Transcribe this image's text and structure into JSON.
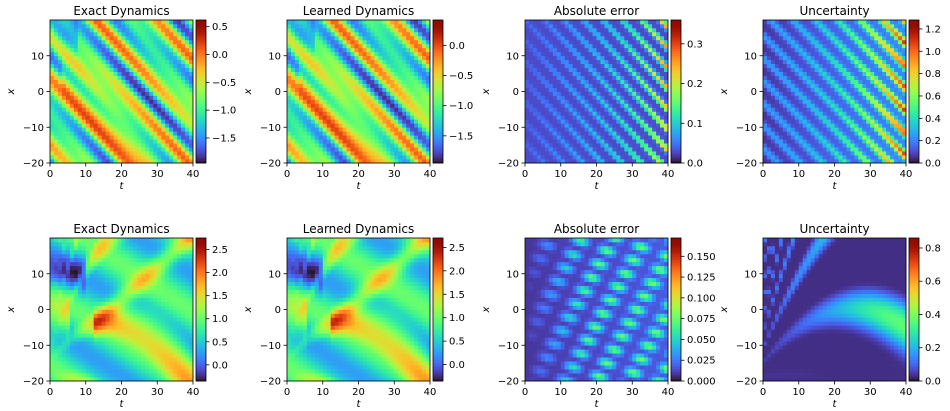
{
  "chart_data": [
    {
      "type": "heatmap",
      "title": "Exact Dynamics",
      "xlabel": "t",
      "ylabel": "x",
      "xlim": [
        0,
        40
      ],
      "ylim": [
        -20,
        20
      ],
      "xticks": [
        0,
        10,
        20,
        30,
        40
      ],
      "yticks": [
        -20,
        -10,
        0,
        10
      ],
      "colormap": "turbo",
      "pattern": "diag",
      "seed": 1,
      "colorbar": {
        "vmin": -1.95,
        "vmax": 0.62,
        "ticks": [
          "0.5",
          "0.0",
          "−0.5",
          "−1.0",
          "−1.5"
        ],
        "values": [
          0.5,
          0.0,
          -0.5,
          -1.0,
          -1.5
        ]
      }
    },
    {
      "type": "heatmap",
      "title": "Learned Dynamics",
      "xlabel": "t",
      "ylabel": "x",
      "xlim": [
        0,
        40
      ],
      "ylim": [
        -20,
        20
      ],
      "xticks": [
        0,
        10,
        20,
        30,
        40
      ],
      "yticks": [
        -20,
        -10,
        0,
        10
      ],
      "colormap": "turbo",
      "pattern": "diag",
      "seed": 1,
      "colorbar": {
        "vmin": -1.95,
        "vmax": 0.42,
        "ticks": [
          "0.0",
          "−0.5",
          "−1.0",
          "−1.5"
        ],
        "values": [
          0.0,
          -0.5,
          -1.0,
          -1.5
        ]
      }
    },
    {
      "type": "heatmap",
      "title": "Absolute error",
      "xlabel": "t",
      "ylabel": "x",
      "xlim": [
        0,
        40
      ],
      "ylim": [
        -20,
        20
      ],
      "xticks": [
        0,
        10,
        20,
        30,
        40
      ],
      "yticks": [
        -20,
        -10,
        0,
        10
      ],
      "colormap": "turbo",
      "pattern": "err1",
      "seed": 2,
      "colorbar": {
        "vmin": 0.0,
        "vmax": 0.36,
        "ticks": [
          "0.3",
          "0.2",
          "0.1",
          "0.0"
        ],
        "values": [
          0.3,
          0.2,
          0.1,
          0.0
        ]
      }
    },
    {
      "type": "heatmap",
      "title": "Uncertainty",
      "xlabel": "t",
      "ylabel": "x",
      "xlim": [
        0,
        40
      ],
      "ylim": [
        -20,
        20
      ],
      "xticks": [
        0,
        10,
        20,
        30,
        40
      ],
      "yticks": [
        -20,
        -10,
        0,
        10
      ],
      "colormap": "turbo",
      "pattern": "unc1",
      "seed": 3,
      "colorbar": {
        "vmin": 0.0,
        "vmax": 1.28,
        "ticks": [
          "1.2",
          "1.0",
          "0.8",
          "0.6",
          "0.4",
          "0.2",
          "0.0"
        ],
        "values": [
          1.2,
          1.0,
          0.8,
          0.6,
          0.4,
          0.2,
          0.0
        ]
      }
    },
    {
      "type": "heatmap",
      "title": "Exact Dynamics",
      "xlabel": "t",
      "ylabel": "x",
      "xlim": [
        0,
        40
      ],
      "ylim": [
        -20,
        20
      ],
      "xticks": [
        0,
        10,
        20,
        30,
        40
      ],
      "yticks": [
        -20,
        -10,
        0,
        10
      ],
      "colormap": "turbo",
      "pattern": "fan",
      "seed": 4,
      "colorbar": {
        "vmin": -0.35,
        "vmax": 2.75,
        "ticks": [
          "2.5",
          "2.0",
          "1.5",
          "1.0",
          "0.5",
          "0.0"
        ],
        "values": [
          2.5,
          2.0,
          1.5,
          1.0,
          0.5,
          0.0
        ]
      }
    },
    {
      "type": "heatmap",
      "title": "Learned Dynamics",
      "xlabel": "t",
      "ylabel": "x",
      "xlim": [
        0,
        40
      ],
      "ylim": [
        -20,
        20
      ],
      "xticks": [
        0,
        10,
        20,
        30,
        40
      ],
      "yticks": [
        -20,
        -10,
        0,
        10
      ],
      "colormap": "turbo",
      "pattern": "fan",
      "seed": 4,
      "colorbar": {
        "vmin": -0.35,
        "vmax": 2.7,
        "ticks": [
          "2.5",
          "2.0",
          "1.5",
          "1.0",
          "0.5",
          "0.0"
        ],
        "values": [
          2.5,
          2.0,
          1.5,
          1.0,
          0.5,
          0.0
        ]
      }
    },
    {
      "type": "heatmap",
      "title": "Absolute error",
      "xlabel": "t",
      "ylabel": "x",
      "xlim": [
        0,
        40
      ],
      "ylim": [
        -20,
        20
      ],
      "xticks": [
        0,
        10,
        20,
        30,
        40
      ],
      "yticks": [
        -20,
        -10,
        0,
        10
      ],
      "colormap": "turbo",
      "pattern": "err2",
      "seed": 5,
      "colorbar": {
        "vmin": 0.0,
        "vmax": 0.172,
        "ticks": [
          "0.150",
          "0.125",
          "0.100",
          "0.075",
          "0.050",
          "0.025",
          "0.000"
        ],
        "values": [
          0.15,
          0.125,
          0.1,
          0.075,
          0.05,
          0.025,
          0.0
        ]
      }
    },
    {
      "type": "heatmap",
      "title": "Uncertainty",
      "xlabel": "t",
      "ylabel": "x",
      "xlim": [
        0,
        40
      ],
      "ylim": [
        -20,
        20
      ],
      "xticks": [
        0,
        10,
        20,
        30,
        40
      ],
      "yticks": [
        -20,
        -10,
        0,
        10
      ],
      "colormap": "turbo",
      "pattern": "unc2",
      "seed": 6,
      "colorbar": {
        "vmin": 0.0,
        "vmax": 0.86,
        "ticks": [
          "0.8",
          "0.6",
          "0.4",
          "0.2",
          "0.0"
        ],
        "values": [
          0.8,
          0.6,
          0.4,
          0.2,
          0.0
        ]
      }
    }
  ]
}
